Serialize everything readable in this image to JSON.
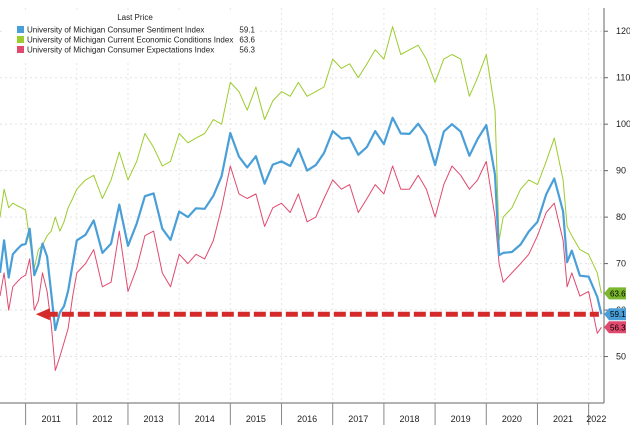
{
  "chart_data": {
    "type": "line",
    "title": "",
    "xlabel": "",
    "ylabel": "",
    "xlim": [
      2010.5,
      2022.3
    ],
    "ylim": [
      40,
      125
    ],
    "yticks": [
      50,
      60,
      70,
      80,
      90,
      100,
      110,
      120
    ],
    "ytick_labels": [
      "50",
      "60",
      "70",
      "80",
      "90",
      "100",
      "110",
      "120"
    ],
    "year_labels": [
      "2011",
      "2012",
      "2013",
      "2014",
      "2015",
      "2016",
      "2017",
      "2018",
      "2019",
      "2020",
      "2021",
      "2022"
    ],
    "legend": {
      "title": "Last Price",
      "position": "top-left",
      "entries": [
        {
          "name": "University of Michigan Consumer Sentiment Index",
          "value": "59.1",
          "color": "#4a9fd8"
        },
        {
          "name": "University of Michigan Current Economic Conditions Index",
          "value": "63.6",
          "color": "#9ccc2e"
        },
        {
          "name": "University of Michigan Consumer Expectations Index",
          "value": "56.3",
          "color": "#e04a6e"
        }
      ]
    },
    "right_badges": [
      {
        "label": "63.6",
        "value": 63.6,
        "color": "#7cb82e"
      },
      {
        "label": "59.1",
        "value": 59.1,
        "color": "#4a9fd8"
      },
      {
        "label": "56.3",
        "value": 56.3,
        "color": "#e04a6e"
      }
    ],
    "annotation": {
      "type": "dashed-arrow",
      "from_x": 2022.2,
      "to_x": 2011.2,
      "y": 59.1,
      "color": "#d42a2a"
    },
    "series": [
      {
        "name": "University of Michigan Consumer Sentiment Index",
        "color": "#4a9fd8",
        "x": [
          2010.5,
          2010.58,
          2010.67,
          2010.75,
          2010.83,
          2010.92,
          2011.0,
          2011.08,
          2011.17,
          2011.25,
          2011.33,
          2011.42,
          2011.5,
          2011.58,
          2011.67,
          2011.75,
          2011.83,
          2011.92,
          2012.0,
          2012.17,
          2012.33,
          2012.5,
          2012.67,
          2012.83,
          2013.0,
          2013.17,
          2013.33,
          2013.5,
          2013.67,
          2013.83,
          2014.0,
          2014.17,
          2014.33,
          2014.5,
          2014.67,
          2014.83,
          2015.0,
          2015.17,
          2015.33,
          2015.5,
          2015.67,
          2015.83,
          2016.0,
          2016.17,
          2016.33,
          2016.5,
          2016.67,
          2016.83,
          2017.0,
          2017.17,
          2017.33,
          2017.5,
          2017.67,
          2017.83,
          2018.0,
          2018.17,
          2018.33,
          2018.5,
          2018.67,
          2018.83,
          2019.0,
          2019.17,
          2019.33,
          2019.5,
          2019.67,
          2019.83,
          2020.0,
          2020.17,
          2020.25,
          2020.33,
          2020.5,
          2020.67,
          2020.83,
          2021.0,
          2021.17,
          2021.33,
          2021.5,
          2021.58,
          2021.67,
          2021.83,
          2022.0,
          2022.17,
          2022.25
        ],
        "values": [
          68.0,
          75.0,
          67.0,
          72.0,
          73.0,
          74.0,
          74.2,
          77.5,
          67.5,
          69.8,
          74.3,
          71.5,
          63.7,
          55.7,
          59.5,
          60.8,
          64.1,
          69.9,
          75.0,
          76.2,
          79.3,
          72.3,
          74.3,
          82.7,
          73.8,
          78.6,
          84.5,
          85.1,
          77.5,
          75.1,
          81.2,
          80.0,
          81.9,
          81.8,
          84.6,
          88.8,
          98.1,
          93.0,
          90.7,
          93.1,
          87.2,
          91.3,
          92.0,
          91.0,
          94.7,
          90.0,
          91.2,
          93.8,
          98.5,
          96.9,
          97.1,
          93.4,
          95.1,
          98.5,
          95.7,
          101.4,
          98.0,
          97.9,
          100.1,
          97.5,
          91.2,
          98.4,
          100.0,
          98.4,
          93.2,
          96.8,
          99.8,
          89.1,
          71.8,
          72.3,
          72.5,
          74.1,
          76.9,
          79.0,
          84.9,
          88.3,
          81.2,
          70.3,
          72.8,
          67.4,
          67.2,
          62.8,
          59.1
        ]
      },
      {
        "name": "University of Michigan Current Economic Conditions Index",
        "color": "#9ccc2e",
        "x": [
          2010.5,
          2010.58,
          2010.67,
          2010.75,
          2010.83,
          2010.92,
          2011.0,
          2011.08,
          2011.17,
          2011.25,
          2011.33,
          2011.42,
          2011.5,
          2011.58,
          2011.67,
          2011.75,
          2011.83,
          2011.92,
          2012.0,
          2012.17,
          2012.33,
          2012.5,
          2012.67,
          2012.83,
          2013.0,
          2013.17,
          2013.33,
          2013.5,
          2013.67,
          2013.83,
          2014.0,
          2014.17,
          2014.33,
          2014.5,
          2014.67,
          2014.83,
          2015.0,
          2015.17,
          2015.33,
          2015.5,
          2015.67,
          2015.83,
          2016.0,
          2016.17,
          2016.33,
          2016.5,
          2016.67,
          2016.83,
          2017.0,
          2017.17,
          2017.33,
          2017.5,
          2017.67,
          2017.83,
          2018.0,
          2018.17,
          2018.33,
          2018.5,
          2018.67,
          2018.83,
          2019.0,
          2019.17,
          2019.33,
          2019.5,
          2019.67,
          2019.83,
          2020.0,
          2020.17,
          2020.25,
          2020.33,
          2020.5,
          2020.67,
          2020.83,
          2021.0,
          2021.17,
          2021.33,
          2021.5,
          2021.58,
          2021.67,
          2021.83,
          2022.0,
          2022.17,
          2022.25
        ],
        "values": [
          80.0,
          86.0,
          82.0,
          83.0,
          82.5,
          82.0,
          81.5,
          75.0,
          69.0,
          73.0,
          74.0,
          76.0,
          77.0,
          80.0,
          77.0,
          79.0,
          82.0,
          84.0,
          86.0,
          88.0,
          89.0,
          84.0,
          88.0,
          94.0,
          88.0,
          92.0,
          98.0,
          95.0,
          91.0,
          92.0,
          98.0,
          96.0,
          97.0,
          98.0,
          101.0,
          100.0,
          109.0,
          107.0,
          103.0,
          108.0,
          101.0,
          105.0,
          107.0,
          106.0,
          109.0,
          106.0,
          107.0,
          108.0,
          114.0,
          112.0,
          113.0,
          110.0,
          113.0,
          116.0,
          114.0,
          121.0,
          115.0,
          116.0,
          117.0,
          114.0,
          109.0,
          114.0,
          115.0,
          114.0,
          106.0,
          110.0,
          115.0,
          103.0,
          75.0,
          80.0,
          82.0,
          86.0,
          88.0,
          87.0,
          92.0,
          97.0,
          88.0,
          78.0,
          76.0,
          73.0,
          72.0,
          68.0,
          63.6
        ]
      },
      {
        "name": "University of Michigan Consumer Expectations Index",
        "color": "#e04a6e",
        "x": [
          2010.5,
          2010.58,
          2010.67,
          2010.75,
          2010.83,
          2010.92,
          2011.0,
          2011.08,
          2011.17,
          2011.25,
          2011.33,
          2011.42,
          2011.5,
          2011.58,
          2011.67,
          2011.75,
          2011.83,
          2011.92,
          2012.0,
          2012.17,
          2012.33,
          2012.5,
          2012.67,
          2012.83,
          2013.0,
          2013.17,
          2013.33,
          2013.5,
          2013.67,
          2013.83,
          2014.0,
          2014.17,
          2014.33,
          2014.5,
          2014.67,
          2014.83,
          2015.0,
          2015.17,
          2015.33,
          2015.5,
          2015.67,
          2015.83,
          2016.0,
          2016.17,
          2016.33,
          2016.5,
          2016.67,
          2016.83,
          2017.0,
          2017.17,
          2017.33,
          2017.5,
          2017.67,
          2017.83,
          2018.0,
          2018.17,
          2018.33,
          2018.5,
          2018.67,
          2018.83,
          2019.0,
          2019.17,
          2019.33,
          2019.5,
          2019.67,
          2019.83,
          2020.0,
          2020.17,
          2020.25,
          2020.33,
          2020.5,
          2020.67,
          2020.83,
          2021.0,
          2021.17,
          2021.33,
          2021.5,
          2021.58,
          2021.67,
          2021.83,
          2022.0,
          2022.17,
          2022.25
        ],
        "values": [
          63.0,
          68.0,
          60.0,
          65.0,
          66.0,
          67.0,
          67.5,
          71.0,
          60.0,
          62.0,
          68.0,
          64.0,
          57.0,
          47.0,
          50.0,
          53.0,
          56.0,
          63.0,
          68.0,
          70.0,
          73.0,
          65.0,
          66.0,
          77.0,
          64.0,
          69.0,
          76.0,
          77.0,
          68.0,
          65.0,
          72.0,
          70.0,
          72.0,
          71.0,
          75.0,
          82.0,
          91.0,
          85.0,
          84.0,
          85.0,
          78.0,
          82.0,
          83.0,
          81.0,
          85.0,
          79.0,
          80.0,
          84.0,
          88.0,
          86.0,
          87.0,
          81.0,
          84.0,
          87.0,
          85.0,
          91.0,
          86.0,
          86.0,
          89.0,
          86.0,
          80.0,
          87.0,
          91.0,
          89.0,
          86.0,
          88.0,
          92.0,
          80.0,
          70.0,
          66.0,
          68.0,
          70.0,
          72.0,
          76.0,
          81.0,
          83.0,
          75.0,
          65.0,
          68.0,
          63.0,
          64.0,
          55.0,
          56.3
        ]
      }
    ]
  }
}
